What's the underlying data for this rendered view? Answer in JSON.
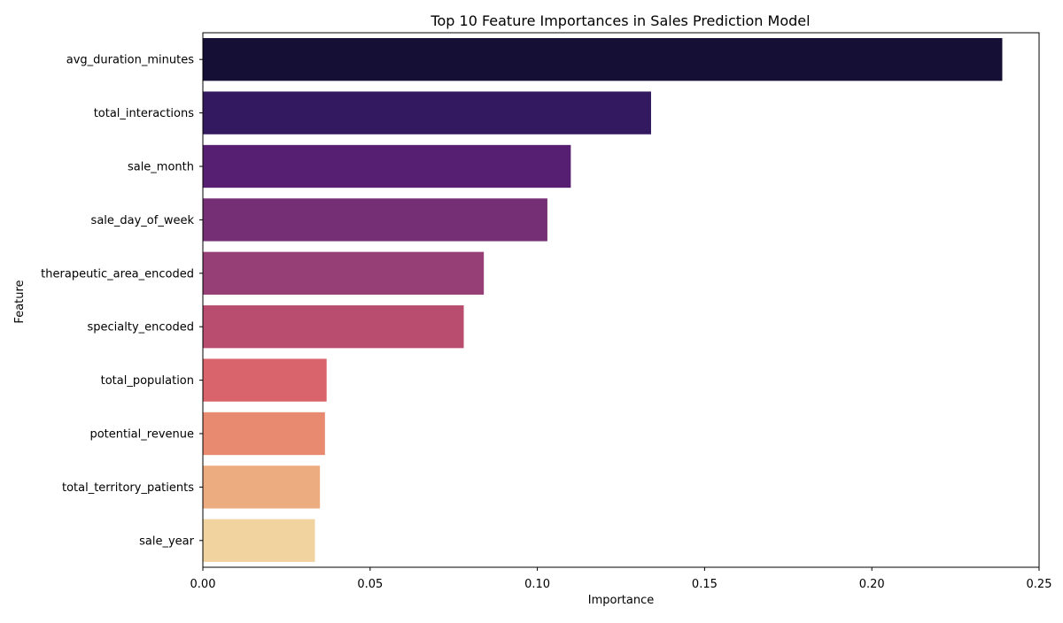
{
  "chart_data": {
    "type": "bar",
    "orientation": "horizontal",
    "title": "Top 10 Feature Importances in Sales Prediction Model",
    "xlabel": "Importance",
    "ylabel": "Feature",
    "xlim": [
      0,
      0.25
    ],
    "xticks": [
      0.0,
      0.05,
      0.1,
      0.15,
      0.2,
      0.25
    ],
    "xtick_labels": [
      "0.00",
      "0.05",
      "0.10",
      "0.15",
      "0.20",
      "0.25"
    ],
    "grid": false,
    "legend": "none",
    "categories": [
      "avg_duration_minutes",
      "total_interactions",
      "sale_month",
      "sale_day_of_week",
      "therapeutic_area_encoded",
      "specialty_encoded",
      "total_population",
      "potential_revenue",
      "total_territory_patients",
      "sale_year"
    ],
    "values": [
      0.239,
      0.134,
      0.11,
      0.103,
      0.084,
      0.078,
      0.037,
      0.0365,
      0.035,
      0.0335
    ],
    "colors": [
      "#150e35",
      "#331a60",
      "#561f71",
      "#752f74",
      "#963f77",
      "#b94d6f",
      "#d9646b",
      "#e78a6f",
      "#edac80",
      "#f1d3a0"
    ]
  }
}
